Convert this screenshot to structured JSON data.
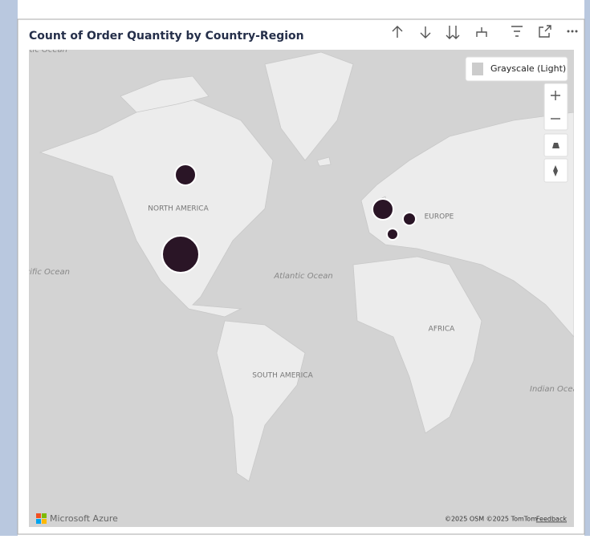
{
  "visual": {
    "title": "Count of Order Quantity by Country-Region"
  },
  "map": {
    "style_button": "Grayscale (Light)",
    "labels": {
      "north_america": "NORTH AMERICA",
      "europe": "EUROPE",
      "africa": "AFRICA",
      "south_america": "SOUTH AMERICA",
      "atlantic": "Atlantic Ocean",
      "pacific": "Pacific Ocean",
      "arctic": "Arctic Ocean",
      "indian": "Indian Ocean"
    },
    "attribution": {
      "logo": "Microsoft Azure",
      "copyright": "©2025 OSM  ©2025 TomTom",
      "feedback": "Feedback"
    }
  }
}
